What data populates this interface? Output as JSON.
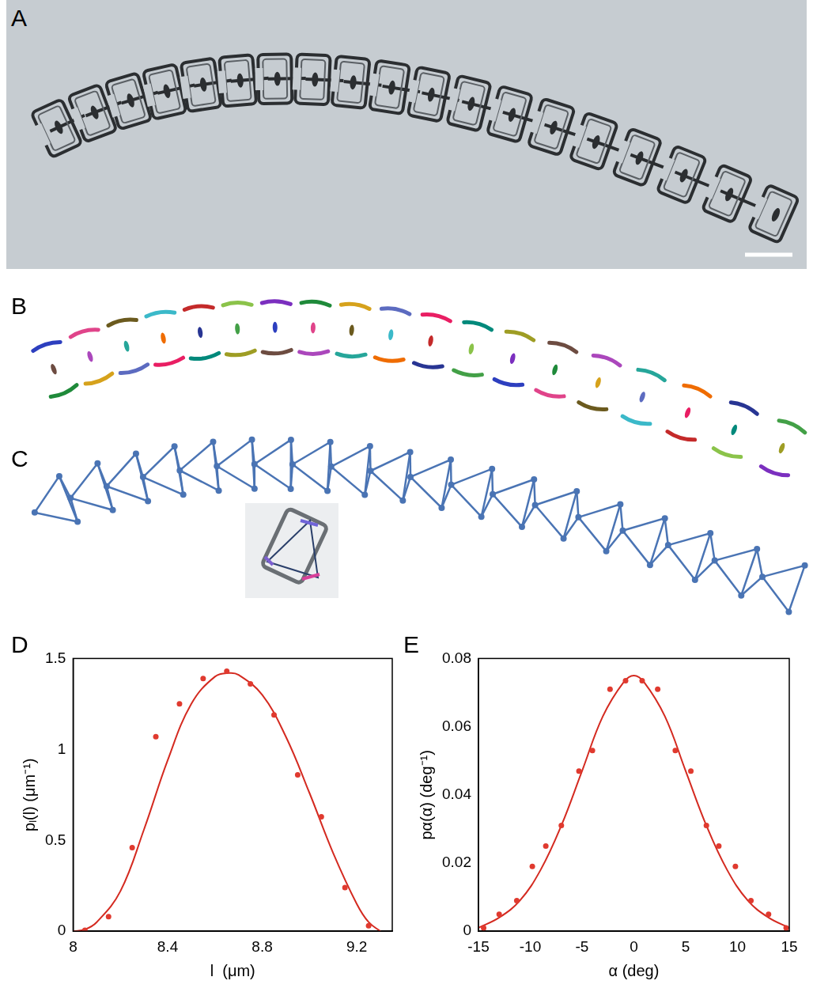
{
  "figure": {
    "panel_labels": [
      "A",
      "B",
      "C",
      "D",
      "E"
    ]
  },
  "chart_data": [
    {
      "type": "scatter",
      "x_label": "l  (μm)",
      "y_label": "pₗ(l) (μm⁻¹)",
      "xlim": [
        8,
        9.35
      ],
      "xticks": [
        8,
        8.4,
        8.8,
        9.2
      ],
      "ylim": [
        0,
        1.5
      ],
      "yticks": [
        0,
        0.5,
        1,
        1.5
      ],
      "grid": false,
      "series": [
        {
          "type": "scatter",
          "marker": "circle",
          "color": "#e03a2f",
          "x": [
            8.05,
            8.15,
            8.25,
            8.35,
            8.45,
            8.55,
            8.65,
            8.75,
            8.85,
            8.95,
            9.05,
            9.15,
            9.25
          ],
          "values": [
            0.005,
            0.08,
            0.46,
            1.07,
            1.25,
            1.39,
            1.43,
            1.36,
            1.19,
            0.86,
            0.63,
            0.24,
            0.03
          ]
        },
        {
          "type": "line",
          "line_style": "solid",
          "color": "#d42a20",
          "x": [
            8.0,
            8.05,
            8.1,
            8.2,
            8.3,
            8.4,
            8.5,
            8.6,
            8.66,
            8.7,
            8.8,
            8.9,
            9.0,
            9.1,
            9.2,
            9.25,
            9.3
          ],
          "values": [
            0,
            0.01,
            0.05,
            0.22,
            0.56,
            0.94,
            1.25,
            1.4,
            1.42,
            1.41,
            1.3,
            1.07,
            0.76,
            0.43,
            0.15,
            0.05,
            0
          ]
        }
      ]
    },
    {
      "type": "scatter",
      "x_label": "α (deg)",
      "y_label": "pα(α) (deg⁻¹)",
      "xlim": [
        -15,
        15
      ],
      "xticks": [
        -15,
        -10,
        -5,
        0,
        5,
        10,
        15
      ],
      "ylim": [
        0,
        0.08
      ],
      "yticks": [
        0,
        0.02,
        0.04,
        0.06,
        0.08
      ],
      "grid": false,
      "series": [
        {
          "type": "scatter",
          "marker": "circle",
          "color": "#e03a2f",
          "x": [
            -14.5,
            -13,
            -11.3,
            -9.8,
            -8.5,
            -7,
            -5.3,
            -4,
            -2.3,
            -0.8,
            0.8,
            2.3,
            4,
            5.5,
            7,
            8.2,
            9.8,
            11.3,
            13,
            14.7
          ],
          "values": [
            0.001,
            0.005,
            0.009,
            0.019,
            0.025,
            0.031,
            0.047,
            0.053,
            0.071,
            0.0735,
            0.0735,
            0.071,
            0.053,
            0.047,
            0.031,
            0.025,
            0.019,
            0.009,
            0.005,
            0.001
          ]
        },
        {
          "type": "line",
          "line_style": "solid",
          "color": "#d42a20",
          "x": [
            -15,
            -13,
            -11,
            -9,
            -7,
            -5,
            -3,
            -1,
            0,
            1,
            3,
            5,
            7,
            9,
            11,
            13,
            15
          ],
          "values": [
            0.001,
            0.004,
            0.009,
            0.018,
            0.031,
            0.047,
            0.063,
            0.073,
            0.075,
            0.073,
            0.063,
            0.047,
            0.031,
            0.018,
            0.009,
            0.004,
            0.001
          ]
        }
      ]
    }
  ]
}
